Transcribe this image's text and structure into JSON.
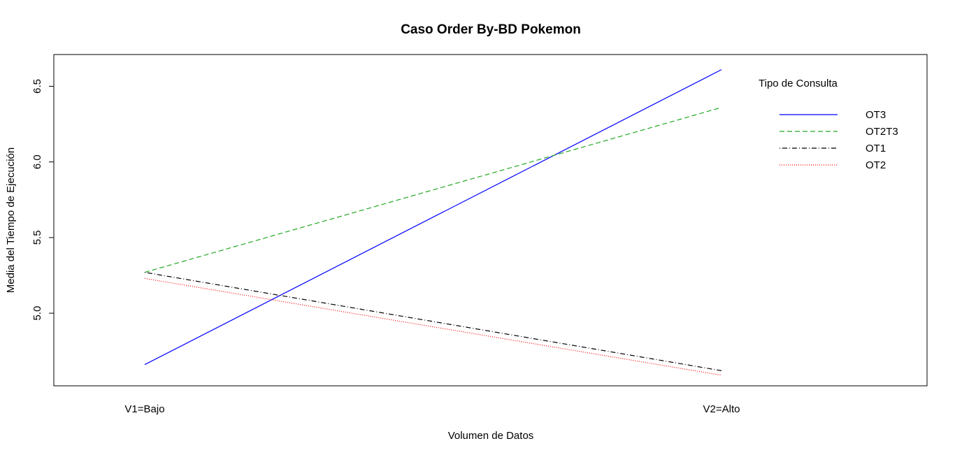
{
  "chart_data": {
    "type": "line",
    "title": "Caso Order By-BD Pokemon",
    "xlabel": "Volumen de Datos",
    "ylabel": "Media del Tiempo de Ejecución",
    "categories": [
      "V1=Bajo",
      "V2=Alto"
    ],
    "ylim": [
      4.52,
      6.71
    ],
    "yticks": [
      "5.0",
      "5.5",
      "6.0",
      "6.5"
    ],
    "grid": false,
    "legend": {
      "title": "Tipo de Consulta",
      "position": "top-right"
    },
    "series": [
      {
        "name": "OT3",
        "values": [
          4.66,
          6.61
        ],
        "color": "#0000ff",
        "dash": "solid"
      },
      {
        "name": "OT2T3",
        "values": [
          5.27,
          6.36
        ],
        "color": "#22aa22",
        "dash": "dashed"
      },
      {
        "name": "OT1",
        "values": [
          5.27,
          4.62
        ],
        "color": "#000000",
        "dash": "dotdash"
      },
      {
        "name": "OT2",
        "values": [
          5.23,
          4.59
        ],
        "color": "#ff0000",
        "dash": "dotted"
      }
    ]
  }
}
